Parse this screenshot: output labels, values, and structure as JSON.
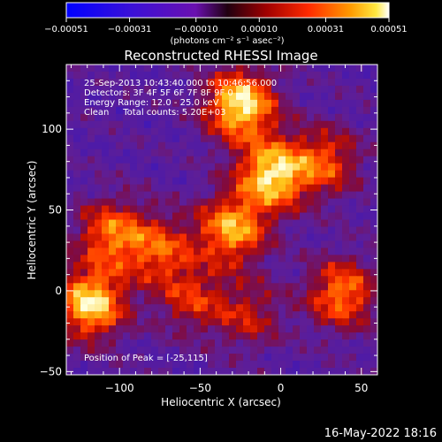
{
  "chart_data": {
    "type": "heatmap",
    "title": "Reconstructed RHESSI Image",
    "xlabel": "Heliocentric X (arcsec)",
    "ylabel": "Heliocentric Y (arcsec)",
    "xlim": [
      -133,
      60
    ],
    "ylim": [
      -52,
      140
    ],
    "xticks": [
      -100,
      -50,
      0,
      50
    ],
    "xtick_labels": [
      "−100",
      "−50",
      "0",
      "50"
    ],
    "yticks": [
      -50,
      0,
      50,
      100
    ],
    "ytick_labels": [
      "−50",
      "0",
      "50",
      "100"
    ],
    "colorbar": {
      "min": -0.00051,
      "max": 0.00051,
      "ticks": [
        "−0.00051",
        "−0.00031",
        "−0.00010",
        "0.00010",
        "0.00031",
        "0.00051"
      ],
      "tick_values": [
        -0.00051,
        -0.00031,
        -0.0001,
        0.0001,
        0.00031,
        0.00051
      ],
      "units_label": "(photons cm⁻² s⁻¹ asec⁻²)"
    },
    "info_lines": [
      "25-Sep-2013 10:43:40.000 to 10:46:56.000",
      "Detectors: 3F 4F 5F 6F 7F 8F 9F 0",
      "Energy Range: 12.0 - 25.0 keV",
      "Clean     Total counts: 5.20E+03"
    ],
    "peak_label": "Position of Peak = [-25,115]",
    "sources": [
      {
        "x": -25,
        "y": 115,
        "rel_intensity": 1.0
      },
      {
        "x": -5,
        "y": 72,
        "rel_intensity": 0.95
      },
      {
        "x": -30,
        "y": 38,
        "rel_intensity": 0.8
      },
      {
        "x": -118,
        "y": -8,
        "rel_intensity": 0.95
      },
      {
        "x": -105,
        "y": 35,
        "rel_intensity": 0.65
      },
      {
        "x": 28,
        "y": 80,
        "rel_intensity": 0.55
      },
      {
        "x": 38,
        "y": -2,
        "rel_intensity": 0.7
      },
      {
        "x": -75,
        "y": 25,
        "rel_intensity": 0.55
      },
      {
        "x": -55,
        "y": -5,
        "rel_intensity": 0.45
      },
      {
        "x": -20,
        "y": -15,
        "rel_intensity": 0.4
      }
    ]
  },
  "footer_timestamp": "16-May-2022 18:16"
}
